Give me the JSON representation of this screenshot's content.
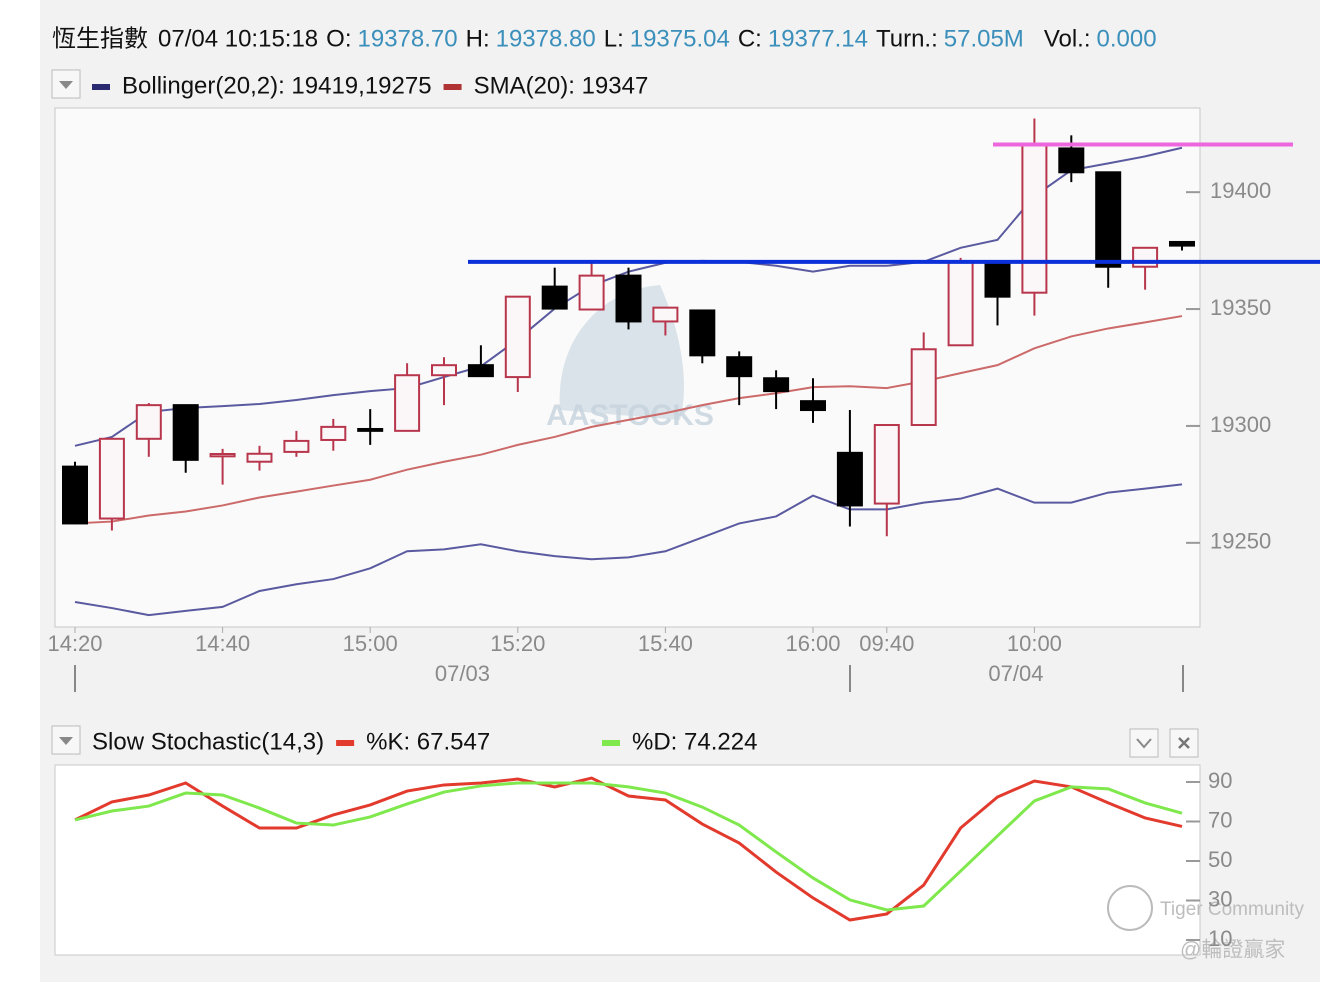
{
  "header": {
    "name": "恆生指數",
    "time": "07/04 10:15:18",
    "fields": [
      {
        "label": "O:",
        "value": "19378.70"
      },
      {
        "label": "H:",
        "value": "19378.80"
      },
      {
        "label": "L:",
        "value": "19375.04"
      },
      {
        "label": "C:",
        "value": "19377.14"
      },
      {
        "label": "Turn.:",
        "value": "57.05M"
      },
      {
        "label": "Vol.:",
        "value": "0.000"
      }
    ]
  },
  "watermarks": {
    "chart": "AASTOCKS",
    "community": "Tiger Community",
    "author": "@輪證贏家"
  },
  "chart_data": [
    {
      "type": "candlestick",
      "legend": [
        {
          "label": "Bollinger(20,2): 19419,19275",
          "color": "#2a2a70"
        },
        {
          "label": "SMA(20): 19347",
          "color": "#b03434"
        }
      ],
      "xticks": [
        {
          "value": 0,
          "label": "14:20"
        },
        {
          "value": 4,
          "label": "14:40"
        },
        {
          "value": 8,
          "label": "15:00"
        },
        {
          "value": 12,
          "label": "15:20"
        },
        {
          "value": 16,
          "label": "15:40"
        },
        {
          "value": 20,
          "label": "16:00"
        },
        {
          "value": 22,
          "label": "09:40"
        },
        {
          "value": 26,
          "label": "10:00"
        }
      ],
      "dates": [
        {
          "value": 10.5,
          "label": "07/03"
        },
        {
          "value": 25.5,
          "label": "07/04"
        }
      ],
      "open": [
        19282.6,
        19260.4,
        19294.5,
        19308.9,
        19287,
        19284.7,
        19288.9,
        19294,
        19298.7,
        19297.9,
        19321.7,
        19326,
        19320.9,
        19359.6,
        19349.8,
        19364.3,
        19344.7,
        19349.4,
        19329.4,
        19320.4,
        19310.6,
        19288.5,
        19266.8,
        19300.4,
        19334.5,
        19370.2,
        19357,
        19418.7,
        19408.5,
        19368.1,
        19378.7
      ],
      "high": [
        19284.7,
        19294.5,
        19309.8,
        19308.9,
        19290.2,
        19291.5,
        19297.9,
        19303,
        19307.2,
        19326.8,
        19329.4,
        19334.5,
        19355.3,
        19367.7,
        19370.2,
        19367.7,
        19350.6,
        19349.4,
        19331.9,
        19323.8,
        19320.4,
        19306.8,
        19300.4,
        19340,
        19371.9,
        19370.2,
        19431.5,
        19424.3,
        19408.5,
        19376.2,
        19378.8
      ],
      "low": [
        19258.3,
        19255.3,
        19286.8,
        19280,
        19274.9,
        19280.9,
        19286.8,
        19289.4,
        19291.9,
        19297.9,
        19308.9,
        19321.3,
        19314.5,
        19350.2,
        19349.8,
        19341.3,
        19338.7,
        19326.8,
        19308.9,
        19307.2,
        19301.3,
        19257,
        19252.8,
        19300.4,
        19334.5,
        19343,
        19347.2,
        19404.3,
        19359.1,
        19358.3,
        19375.04
      ],
      "close": [
        19258.3,
        19294.5,
        19308.9,
        19285.5,
        19288,
        19288.1,
        19293.6,
        19299.6,
        19297.9,
        19321.7,
        19326,
        19321.3,
        19355.3,
        19350.2,
        19364.3,
        19344.7,
        19350.6,
        19330.2,
        19321.3,
        19314.9,
        19306.8,
        19266,
        19300.4,
        19332.8,
        19370.2,
        19355.3,
        19420,
        19408.5,
        19368.1,
        19376.2,
        19377.14
      ],
      "up_color": "#b8364c",
      "down_color": "#000000",
      "bands": {
        "color": "#5a5aa0",
        "upper": [
          19291.5,
          19295.3,
          19306,
          19307.7,
          19308.5,
          19309.4,
          19311.1,
          19313.2,
          19314.9,
          19316.2,
          19320.9,
          19325.5,
          19337,
          19350.2,
          19360,
          19366,
          19369.8,
          19370.6,
          19370.2,
          19368.5,
          19366,
          19368.5,
          19368.5,
          19370.2,
          19376.2,
          19379.6,
          19398.3,
          19409.4,
          19412.3,
          19415.3,
          19419
        ],
        "lower": [
          19224.7,
          19222.1,
          19219.1,
          19220.9,
          19222.6,
          19229.4,
          19232.3,
          19234.5,
          19239.1,
          19246.4,
          19247.2,
          19249.4,
          19246.4,
          19244.3,
          19243,
          19243.8,
          19246.4,
          19252.3,
          19258.3,
          19261.3,
          19270.2,
          19264.3,
          19264.3,
          19267.2,
          19268.9,
          19273.2,
          19267.2,
          19267.2,
          19271.5,
          19273.2,
          19275
        ]
      },
      "sma": {
        "color": "#cc6a6a",
        "values": [
          19258.3,
          19259.1,
          19261.7,
          19263.4,
          19266,
          19269.4,
          19271.9,
          19274.5,
          19277,
          19281.3,
          19284.7,
          19287.7,
          19291.9,
          19295.3,
          19299.6,
          19302.6,
          19305.5,
          19308.9,
          19311.9,
          19314,
          19316.6,
          19317,
          19316.2,
          19319.1,
          19322.6,
          19326,
          19333.2,
          19338.3,
          19341.7,
          19344.3,
          19347
        ]
      },
      "hlines": [
        {
          "value": 19370.2,
          "color": "#0b2fd8"
        },
        {
          "value": 19420.4,
          "color": "#ee66dd"
        }
      ],
      "ylim": [
        19214,
        19436
      ],
      "yticks": [
        19250,
        19300,
        19350,
        19400
      ]
    },
    {
      "type": "line",
      "title": "Slow Stochastic(14,3)",
      "series": [
        {
          "name": "%K: 67.547",
          "color": "#e23a2c",
          "values": [
            70.8,
            79.9,
            83.4,
            89.5,
            77.8,
            66.7,
            66.7,
            73.3,
            78.4,
            85.4,
            88.5,
            89.5,
            91.5,
            87.5,
            92,
            82.9,
            80.9,
            68.7,
            59.1,
            44.4,
            31.3,
            20.1,
            23.2,
            37.8,
            66.7,
            82.4,
            90.5,
            87.5,
            79.4,
            71.8,
            67.5
          ]
        },
        {
          "name": "%D: 74.224",
          "color": "#7ee84c",
          "values": [
            70.8,
            75.3,
            77.8,
            84.4,
            83.4,
            76.8,
            69.2,
            68.2,
            72.3,
            78.9,
            84.9,
            88,
            89.5,
            89.5,
            89.5,
            87.5,
            84.4,
            77.3,
            68.2,
            54.6,
            41.4,
            30.3,
            25.2,
            27.2,
            44.9,
            62.7,
            80.4,
            87.5,
            86.5,
            79.4,
            74.2
          ]
        }
      ],
      "ylim": [
        2.4,
        98.6
      ],
      "yticks": [
        10,
        30,
        50,
        70,
        90
      ]
    }
  ]
}
